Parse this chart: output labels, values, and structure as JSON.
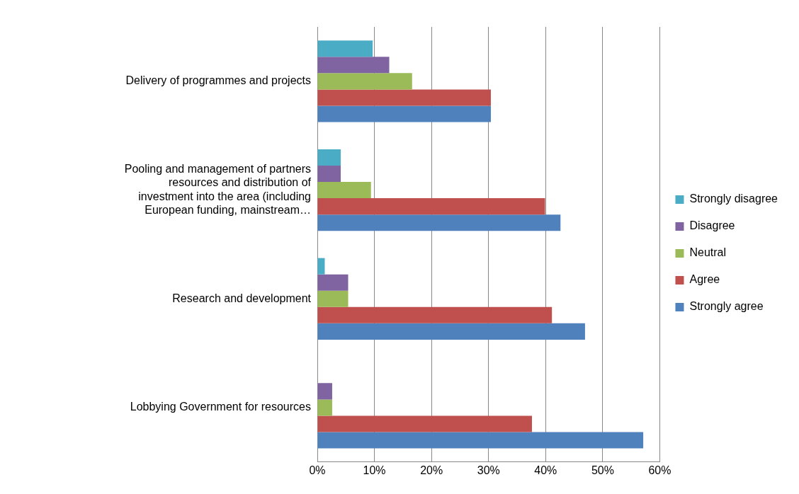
{
  "chart_data": {
    "type": "bar",
    "orientation": "horizontal",
    "categories": [
      "Delivery of programmes and projects",
      "Pooling and management of partners resources and distribution of investment into the area (including European funding, mainstream…",
      "Research and development",
      "Lobbying Government for resources"
    ],
    "series": [
      {
        "name": "Strongly disagree",
        "color": "#4bacc6",
        "values": [
          9.7,
          4.1,
          1.3,
          0
        ]
      },
      {
        "name": "Disagree",
        "color": "#8064a2",
        "values": [
          12.6,
          4.1,
          5.4,
          2.6
        ]
      },
      {
        "name": "Neutral",
        "color": "#9bbb59",
        "values": [
          16.6,
          9.4,
          5.4,
          2.6
        ]
      },
      {
        "name": "Agree",
        "color": "#c0504d",
        "values": [
          30.4,
          39.9,
          41.1,
          37.6
        ]
      },
      {
        "name": "Strongly agree",
        "color": "#4f81bd",
        "values": [
          30.4,
          42.6,
          46.9,
          57.1
        ]
      }
    ],
    "xlim": [
      0,
      60
    ],
    "xticks": [
      {
        "value": 0,
        "label": "0%"
      },
      {
        "value": 10,
        "label": "10%"
      },
      {
        "value": 20,
        "label": "20%"
      },
      {
        "value": 30,
        "label": "30%"
      },
      {
        "value": 40,
        "label": "40%"
      },
      {
        "value": 50,
        "label": "50%"
      },
      {
        "value": 60,
        "label": "60%"
      }
    ],
    "grid": "x",
    "legend": "right"
  }
}
